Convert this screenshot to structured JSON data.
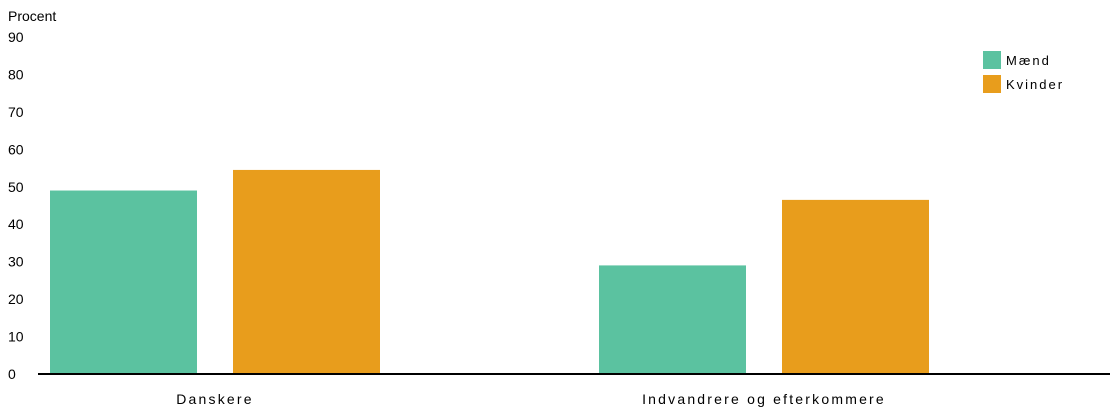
{
  "chart_data": {
    "type": "bar",
    "ylabel": "Procent",
    "categories": [
      "Danskere",
      "Indvandrere og efterkommere"
    ],
    "series": [
      {
        "name": "Mænd",
        "color": "#5bc2a0",
        "values": [
          49,
          29
        ]
      },
      {
        "name": "Kvinder",
        "color": "#e89d1c",
        "values": [
          54.5,
          46.5
        ]
      }
    ],
    "ylim": [
      0,
      90
    ],
    "yticks": [
      0,
      10,
      20,
      30,
      40,
      50,
      60,
      70,
      80,
      90
    ],
    "grid": false,
    "legend_position": "top-right"
  }
}
